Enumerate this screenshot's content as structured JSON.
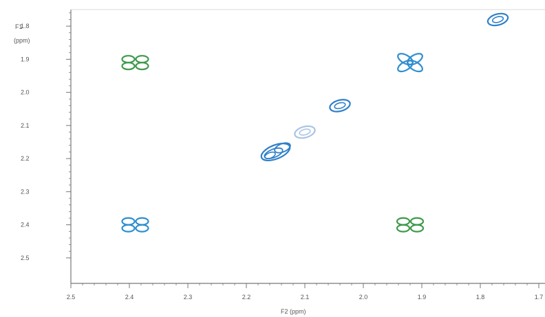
{
  "chart_data": {
    "type": "scatter",
    "subtype": "2D NMR contour (COSY-style)",
    "y_axis_title_line1": "F1",
    "y_axis_title_line2": "(ppm)",
    "x_axis_title": "F2 (ppm)",
    "x_direction": "reversed",
    "y_direction": "increasing downward",
    "xlim": [
      2.5,
      1.7
    ],
    "ylim": [
      1.75,
      2.5
    ],
    "x_ticks": [
      {
        "value": 2.5,
        "label": "2.5"
      },
      {
        "value": 2.4,
        "label": "2.4"
      },
      {
        "value": 2.3,
        "label": "2.3"
      },
      {
        "value": 2.2,
        "label": "2.2"
      },
      {
        "value": 2.1,
        "label": "2.1"
      },
      {
        "value": 2.0,
        "label": "2.0"
      },
      {
        "value": 1.9,
        "label": "1.9"
      },
      {
        "value": 1.8,
        "label": "1.8"
      },
      {
        "value": 1.7,
        "label": "1.7"
      }
    ],
    "y_ticks": [
      {
        "value": 1.8,
        "label": "1.8"
      },
      {
        "value": 1.9,
        "label": "1.9"
      },
      {
        "value": 2.0,
        "label": "2.0"
      },
      {
        "value": 2.1,
        "label": "2.1"
      },
      {
        "value": 2.2,
        "label": "2.2"
      },
      {
        "value": 2.3,
        "label": "2.3"
      },
      {
        "value": 2.4,
        "label": "2.4"
      },
      {
        "value": 2.5,
        "label": "2.5"
      }
    ],
    "peaks": [
      {
        "name": "diag-1",
        "x": 1.77,
        "y": 1.78,
        "shape": "oval",
        "color": "#2f7fc8"
      },
      {
        "name": "cross-upper-right",
        "x": 1.92,
        "y": 1.91,
        "shape": "x-multiplet",
        "color": "#2f8fd0"
      },
      {
        "name": "cross-upper-left",
        "x": 2.39,
        "y": 1.91,
        "shape": "multiplet",
        "color": "#3e9a4c"
      },
      {
        "name": "diag-2",
        "x": 2.04,
        "y": 2.04,
        "shape": "oval",
        "color": "#2f7fc8"
      },
      {
        "name": "diag-3",
        "x": 2.15,
        "y": 2.18,
        "shape": "oval-cluster",
        "color": "#2f7fc8"
      },
      {
        "name": "diag-3-faint",
        "x": 2.1,
        "y": 2.12,
        "shape": "oval",
        "color": "#a9c4e6"
      },
      {
        "name": "cross-lower-left",
        "x": 2.39,
        "y": 2.4,
        "shape": "multiplet",
        "color": "#2f8fd0"
      },
      {
        "name": "cross-lower-right",
        "x": 1.92,
        "y": 2.4,
        "shape": "multiplet",
        "color": "#3e9a4c"
      }
    ],
    "grid": false,
    "colors": {
      "positive": "#2f7fc8",
      "negative": "#3e9a4c",
      "axis": "#777777"
    }
  }
}
